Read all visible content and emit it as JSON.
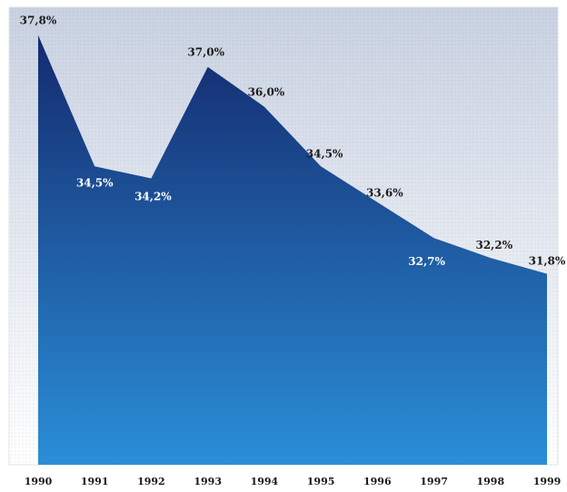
{
  "chart_data": {
    "type": "area",
    "title": "",
    "xlabel": "",
    "ylabel": "",
    "grid": false,
    "legend": "none",
    "x": [
      "1990",
      "1991",
      "1992",
      "1993",
      "1994",
      "1995",
      "1996",
      "1997",
      "1998",
      "1999"
    ],
    "values": [
      37.8,
      34.5,
      34.2,
      37.0,
      36.0,
      34.5,
      33.6,
      32.7,
      32.2,
      31.8
    ],
    "labels": [
      "37,8%",
      "34,5%",
      "34,2%",
      "37,0%",
      "36,0%",
      "34,5%",
      "33,6%",
      "32,7%",
      "32,2%",
      "31,8%"
    ],
    "label_colors": [
      "#1a1a1a",
      "#ffffff",
      "#ffffff",
      "#1a1a1a",
      "#1a1a1a",
      "#1a1a1a",
      "#1a1a1a",
      "#ffffff",
      "#1a1a1a",
      "#1a1a1a"
    ],
    "ylim": [
      27.0,
      38.5
    ],
    "colors": {
      "area_top": "#142a6e",
      "area_bottom": "#2a8fd8",
      "background_top": "#c9d2e2",
      "background_bottom": "#ffffff"
    }
  }
}
